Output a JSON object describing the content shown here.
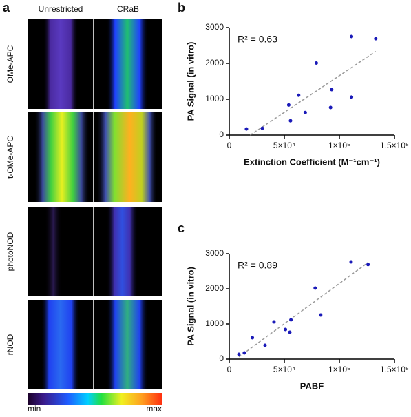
{
  "panel_labels": [
    "a",
    "b",
    "c"
  ],
  "panel_a": {
    "columns": [
      "Unrestricted",
      "CRaB"
    ],
    "rows": [
      "OMe-APC",
      "t-OMe-APC",
      "photoNOD",
      "rNOD"
    ],
    "colorbar": {
      "min": "min",
      "max": "max"
    }
  },
  "chart_data": [
    {
      "type": "scatter",
      "annotation": "R² = 0.63",
      "xlabel": "Extinction Coefficient (M⁻¹cm⁻¹)",
      "ylabel": "PA Signal (in vitro)",
      "color": "#1a1ab8",
      "x": [
        15600,
        30000,
        54000,
        55600,
        63000,
        69000,
        79000,
        92000,
        93000,
        111000,
        111000,
        133000
      ],
      "values": [
        170,
        190,
        840,
        400,
        1110,
        630,
        2010,
        770,
        1270,
        1060,
        2750,
        2690
      ],
      "xlim": [
        0,
        150000
      ],
      "ylim": [
        0,
        3000
      ],
      "xticks": [
        0,
        {
          "value": 50000,
          "label": "5×10⁴"
        },
        {
          "value": 100000,
          "label": "1×10⁵"
        },
        {
          "value": 150000,
          "label": "1.5×10⁵"
        }
      ],
      "yticks": [
        0,
        1000,
        2000,
        3000
      ]
    },
    {
      "type": "scatter",
      "annotation": "R² = 0.89",
      "xlabel": "PABF",
      "ylabel": "PA Signal (in vitro)",
      "color": "#1a1ab8",
      "x": [
        8750,
        13700,
        21000,
        32500,
        40600,
        51000,
        55000,
        56000,
        78000,
        83000,
        110600,
        126000
      ],
      "values": [
        137,
        176,
        608,
        392,
        1059,
        843,
        765,
        1118,
        2020,
        1255,
        2765,
        2690
      ],
      "xlim": [
        0,
        150000
      ],
      "ylim": [
        0,
        3000
      ],
      "xticks": [
        0,
        {
          "value": 50000,
          "label": "5×10⁴"
        },
        {
          "value": 100000,
          "label": "1×10⁵"
        },
        {
          "value": 150000,
          "label": "1.5×10⁵"
        }
      ],
      "yticks": [
        0,
        1000,
        2000,
        3000
      ]
    }
  ]
}
